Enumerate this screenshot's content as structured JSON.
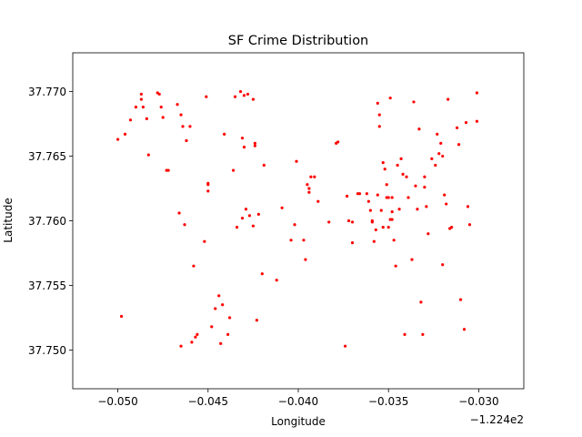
{
  "chart_data": {
    "type": "scatter",
    "title": "SF Crime Distribution",
    "xlabel": "Longitude",
    "ylabel": "Latitude",
    "x_offset_label": "−1.224e2",
    "x_ticks": [
      -0.05,
      -0.045,
      -0.04,
      -0.035,
      -0.03
    ],
    "x_tick_labels": [
      "−0.050",
      "−0.045",
      "−0.040",
      "−0.035",
      "−0.030"
    ],
    "y_ticks": [
      37.75,
      37.755,
      37.76,
      37.765,
      37.77
    ],
    "y_tick_labels": [
      "37.750",
      "37.755",
      "37.760",
      "37.765",
      "37.770"
    ],
    "xlim": [
      -0.0525,
      -0.0275
    ],
    "ylim": [
      37.747,
      37.773
    ],
    "grid": false,
    "legend": "none",
    "marker_color": "#ff0000",
    "series": [
      {
        "points": [
          [
            -0.05,
            37.7663
          ],
          [
            -0.0498,
            37.7526
          ],
          [
            -0.0496,
            37.7667
          ],
          [
            -0.0493,
            37.7678
          ],
          [
            -0.049,
            37.7688
          ],
          [
            -0.0487,
            37.7698
          ],
          [
            -0.0487,
            37.7694
          ],
          [
            -0.0486,
            37.7688
          ],
          [
            -0.0484,
            37.7679
          ],
          [
            -0.0483,
            37.7651
          ],
          [
            -0.0478,
            37.7699
          ],
          [
            -0.0477,
            37.7698
          ],
          [
            -0.0476,
            37.7688
          ],
          [
            -0.0475,
            37.768
          ],
          [
            -0.0473,
            37.7639
          ],
          [
            -0.0472,
            37.7639
          ],
          [
            -0.0467,
            37.769
          ],
          [
            -0.0466,
            37.7606
          ],
          [
            -0.0465,
            37.7682
          ],
          [
            -0.0464,
            37.7673
          ],
          [
            -0.0463,
            37.7597
          ],
          [
            -0.0462,
            37.7662
          ],
          [
            -0.046,
            37.7673
          ],
          [
            -0.0465,
            37.7503
          ],
          [
            -0.0459,
            37.7506
          ],
          [
            -0.0458,
            37.7565
          ],
          [
            -0.0457,
            37.751
          ],
          [
            -0.0456,
            37.7512
          ],
          [
            -0.0452,
            37.7584
          ],
          [
            -0.0451,
            37.7696
          ],
          [
            -0.045,
            37.7629
          ],
          [
            -0.045,
            37.7628
          ],
          [
            -0.045,
            37.7623
          ],
          [
            -0.0448,
            37.7518
          ],
          [
            -0.0446,
            37.7532
          ],
          [
            -0.0444,
            37.7542
          ],
          [
            -0.0443,
            37.7505
          ],
          [
            -0.0442,
            37.7535
          ],
          [
            -0.0441,
            37.7667
          ],
          [
            -0.0439,
            37.7512
          ],
          [
            -0.0438,
            37.7525
          ],
          [
            -0.0436,
            37.7639
          ],
          [
            -0.0435,
            37.7696
          ],
          [
            -0.0434,
            37.7595
          ],
          [
            -0.0432,
            37.77
          ],
          [
            -0.0431,
            37.7664
          ],
          [
            -0.0431,
            37.7602
          ],
          [
            -0.043,
            37.7657
          ],
          [
            -0.043,
            37.7697
          ],
          [
            -0.0429,
            37.7609
          ],
          [
            -0.0428,
            37.7698
          ],
          [
            -0.0427,
            37.7604
          ],
          [
            -0.0425,
            37.7596
          ],
          [
            -0.0425,
            37.7694
          ],
          [
            -0.0424,
            37.7658
          ],
          [
            -0.0424,
            37.766
          ],
          [
            -0.0423,
            37.7523
          ],
          [
            -0.0422,
            37.7605
          ],
          [
            -0.042,
            37.7559
          ],
          [
            -0.0419,
            37.7643
          ],
          [
            -0.0412,
            37.7554
          ],
          [
            -0.0409,
            37.761
          ],
          [
            -0.0404,
            37.7585
          ],
          [
            -0.0402,
            37.7597
          ],
          [
            -0.0401,
            37.7646
          ],
          [
            -0.0397,
            37.7585
          ],
          [
            -0.0396,
            37.757
          ],
          [
            -0.0395,
            37.7628
          ],
          [
            -0.0394,
            37.7622
          ],
          [
            -0.0394,
            37.7625
          ],
          [
            -0.0393,
            37.7634
          ],
          [
            -0.0391,
            37.7634
          ],
          [
            -0.0389,
            37.7615
          ],
          [
            -0.0383,
            37.7599
          ],
          [
            -0.0379,
            37.766
          ],
          [
            -0.0378,
            37.7661
          ],
          [
            -0.0374,
            37.7503
          ],
          [
            -0.0373,
            37.7619
          ],
          [
            -0.0372,
            37.76
          ],
          [
            -0.037,
            37.7599
          ],
          [
            -0.037,
            37.7583
          ],
          [
            -0.0367,
            37.7621
          ],
          [
            -0.0366,
            37.7621
          ],
          [
            -0.0362,
            37.7621
          ],
          [
            -0.0361,
            37.7615
          ],
          [
            -0.036,
            37.7608
          ],
          [
            -0.0359,
            37.7599
          ],
          [
            -0.0359,
            37.76
          ],
          [
            -0.0357,
            37.7593
          ],
          [
            -0.0358,
            37.7584
          ],
          [
            -0.0356,
            37.7691
          ],
          [
            -0.0356,
            37.762
          ],
          [
            -0.0355,
            37.7682
          ],
          [
            -0.0355,
            37.7673
          ],
          [
            -0.0354,
            37.7608
          ],
          [
            -0.0353,
            37.7595
          ],
          [
            -0.0353,
            37.7645
          ],
          [
            -0.0352,
            37.764
          ],
          [
            -0.0351,
            37.7628
          ],
          [
            -0.0351,
            37.7618
          ],
          [
            -0.035,
            37.7618
          ],
          [
            -0.035,
            37.7595
          ],
          [
            -0.0349,
            37.7695
          ],
          [
            -0.0349,
            37.7601
          ],
          [
            -0.0348,
            37.7618
          ],
          [
            -0.0348,
            37.7607
          ],
          [
            -0.0348,
            37.7601
          ],
          [
            -0.0347,
            37.7585
          ],
          [
            -0.0346,
            37.7565
          ],
          [
            -0.0345,
            37.7643
          ],
          [
            -0.0344,
            37.7609
          ],
          [
            -0.0343,
            37.7648
          ],
          [
            -0.0342,
            37.7636
          ],
          [
            -0.0341,
            37.7512
          ],
          [
            -0.034,
            37.7634
          ],
          [
            -0.0339,
            37.7618
          ],
          [
            -0.0337,
            37.757
          ],
          [
            -0.0336,
            37.7692
          ],
          [
            -0.0335,
            37.7627
          ],
          [
            -0.0334,
            37.7609
          ],
          [
            -0.0333,
            37.7671
          ],
          [
            -0.0332,
            37.7537
          ],
          [
            -0.0331,
            37.7512
          ],
          [
            -0.033,
            37.7626
          ],
          [
            -0.033,
            37.7634
          ],
          [
            -0.0329,
            37.7611
          ],
          [
            -0.0328,
            37.759
          ],
          [
            -0.0326,
            37.7648
          ],
          [
            -0.0324,
            37.7643
          ],
          [
            -0.0323,
            37.7667
          ],
          [
            -0.0322,
            37.7652
          ],
          [
            -0.0321,
            37.766
          ],
          [
            -0.032,
            37.765
          ],
          [
            -0.032,
            37.7566
          ],
          [
            -0.0319,
            37.762
          ],
          [
            -0.0318,
            37.7613
          ],
          [
            -0.0317,
            37.7694
          ],
          [
            -0.0316,
            37.7594
          ],
          [
            -0.0315,
            37.7595
          ],
          [
            -0.0312,
            37.7672
          ],
          [
            -0.0311,
            37.7659
          ],
          [
            -0.031,
            37.7539
          ],
          [
            -0.0308,
            37.7516
          ],
          [
            -0.0307,
            37.7676
          ],
          [
            -0.0306,
            37.7611
          ],
          [
            -0.0305,
            37.7597
          ],
          [
            -0.0301,
            37.7699
          ],
          [
            -0.0301,
            37.7677
          ]
        ]
      }
    ]
  }
}
